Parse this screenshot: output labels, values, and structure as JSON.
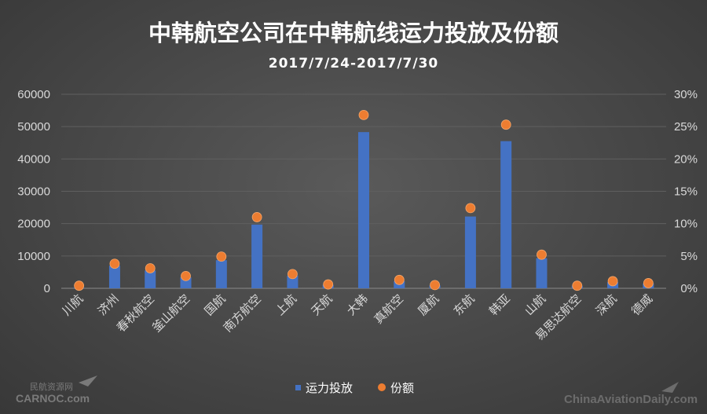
{
  "colors": {
    "bar": "#4472c4",
    "dot": "#ed7d31",
    "grid": "#5f5f5f",
    "text": "#d9d9d9"
  },
  "watermarks": {
    "left_top": "民航资源网",
    "left_bottom": "CARNOC.com",
    "right": "ChinaAviationDaily.com"
  },
  "chart_data": {
    "type": "bar",
    "title": "中韩航空公司在中韩航线运力投放及份额",
    "subtitle": "2017/7/24-2017/7/30",
    "categories": [
      "川航",
      "济州",
      "春秋航空",
      "釜山航空",
      "国航",
      "南方航空",
      "上航",
      "天航",
      "大韩",
      "真航空",
      "厦航",
      "东航",
      "韩亚",
      "山航",
      "易思达航空",
      "深航",
      "德威"
    ],
    "series": [
      {
        "name": "运力投放",
        "kind": "bar",
        "axis": "left",
        "values": [
          200,
          7000,
          5500,
          3400,
          8700,
          19700,
          3900,
          1100,
          48300,
          2200,
          900,
          22200,
          45500,
          9300,
          800,
          1900,
          1500
        ]
      },
      {
        "name": "份额",
        "kind": "dot",
        "axis": "right",
        "values": [
          0.4,
          3.8,
          3.1,
          1.9,
          4.9,
          11.0,
          2.2,
          0.6,
          26.8,
          1.3,
          0.5,
          12.4,
          25.3,
          5.2,
          0.4,
          1.1,
          0.8
        ]
      }
    ],
    "y_left": {
      "min": 0,
      "max": 60000,
      "ticks": [
        "0",
        "10000",
        "20000",
        "30000",
        "40000",
        "50000",
        "60000"
      ]
    },
    "y_right": {
      "min": 0,
      "max": 30,
      "ticks": [
        "0%",
        "5%",
        "10%",
        "15%",
        "20%",
        "25%",
        "30%"
      ]
    },
    "grid": true,
    "legend": {
      "position": "bottom",
      "items": [
        "运力投放",
        "份额"
      ]
    }
  }
}
